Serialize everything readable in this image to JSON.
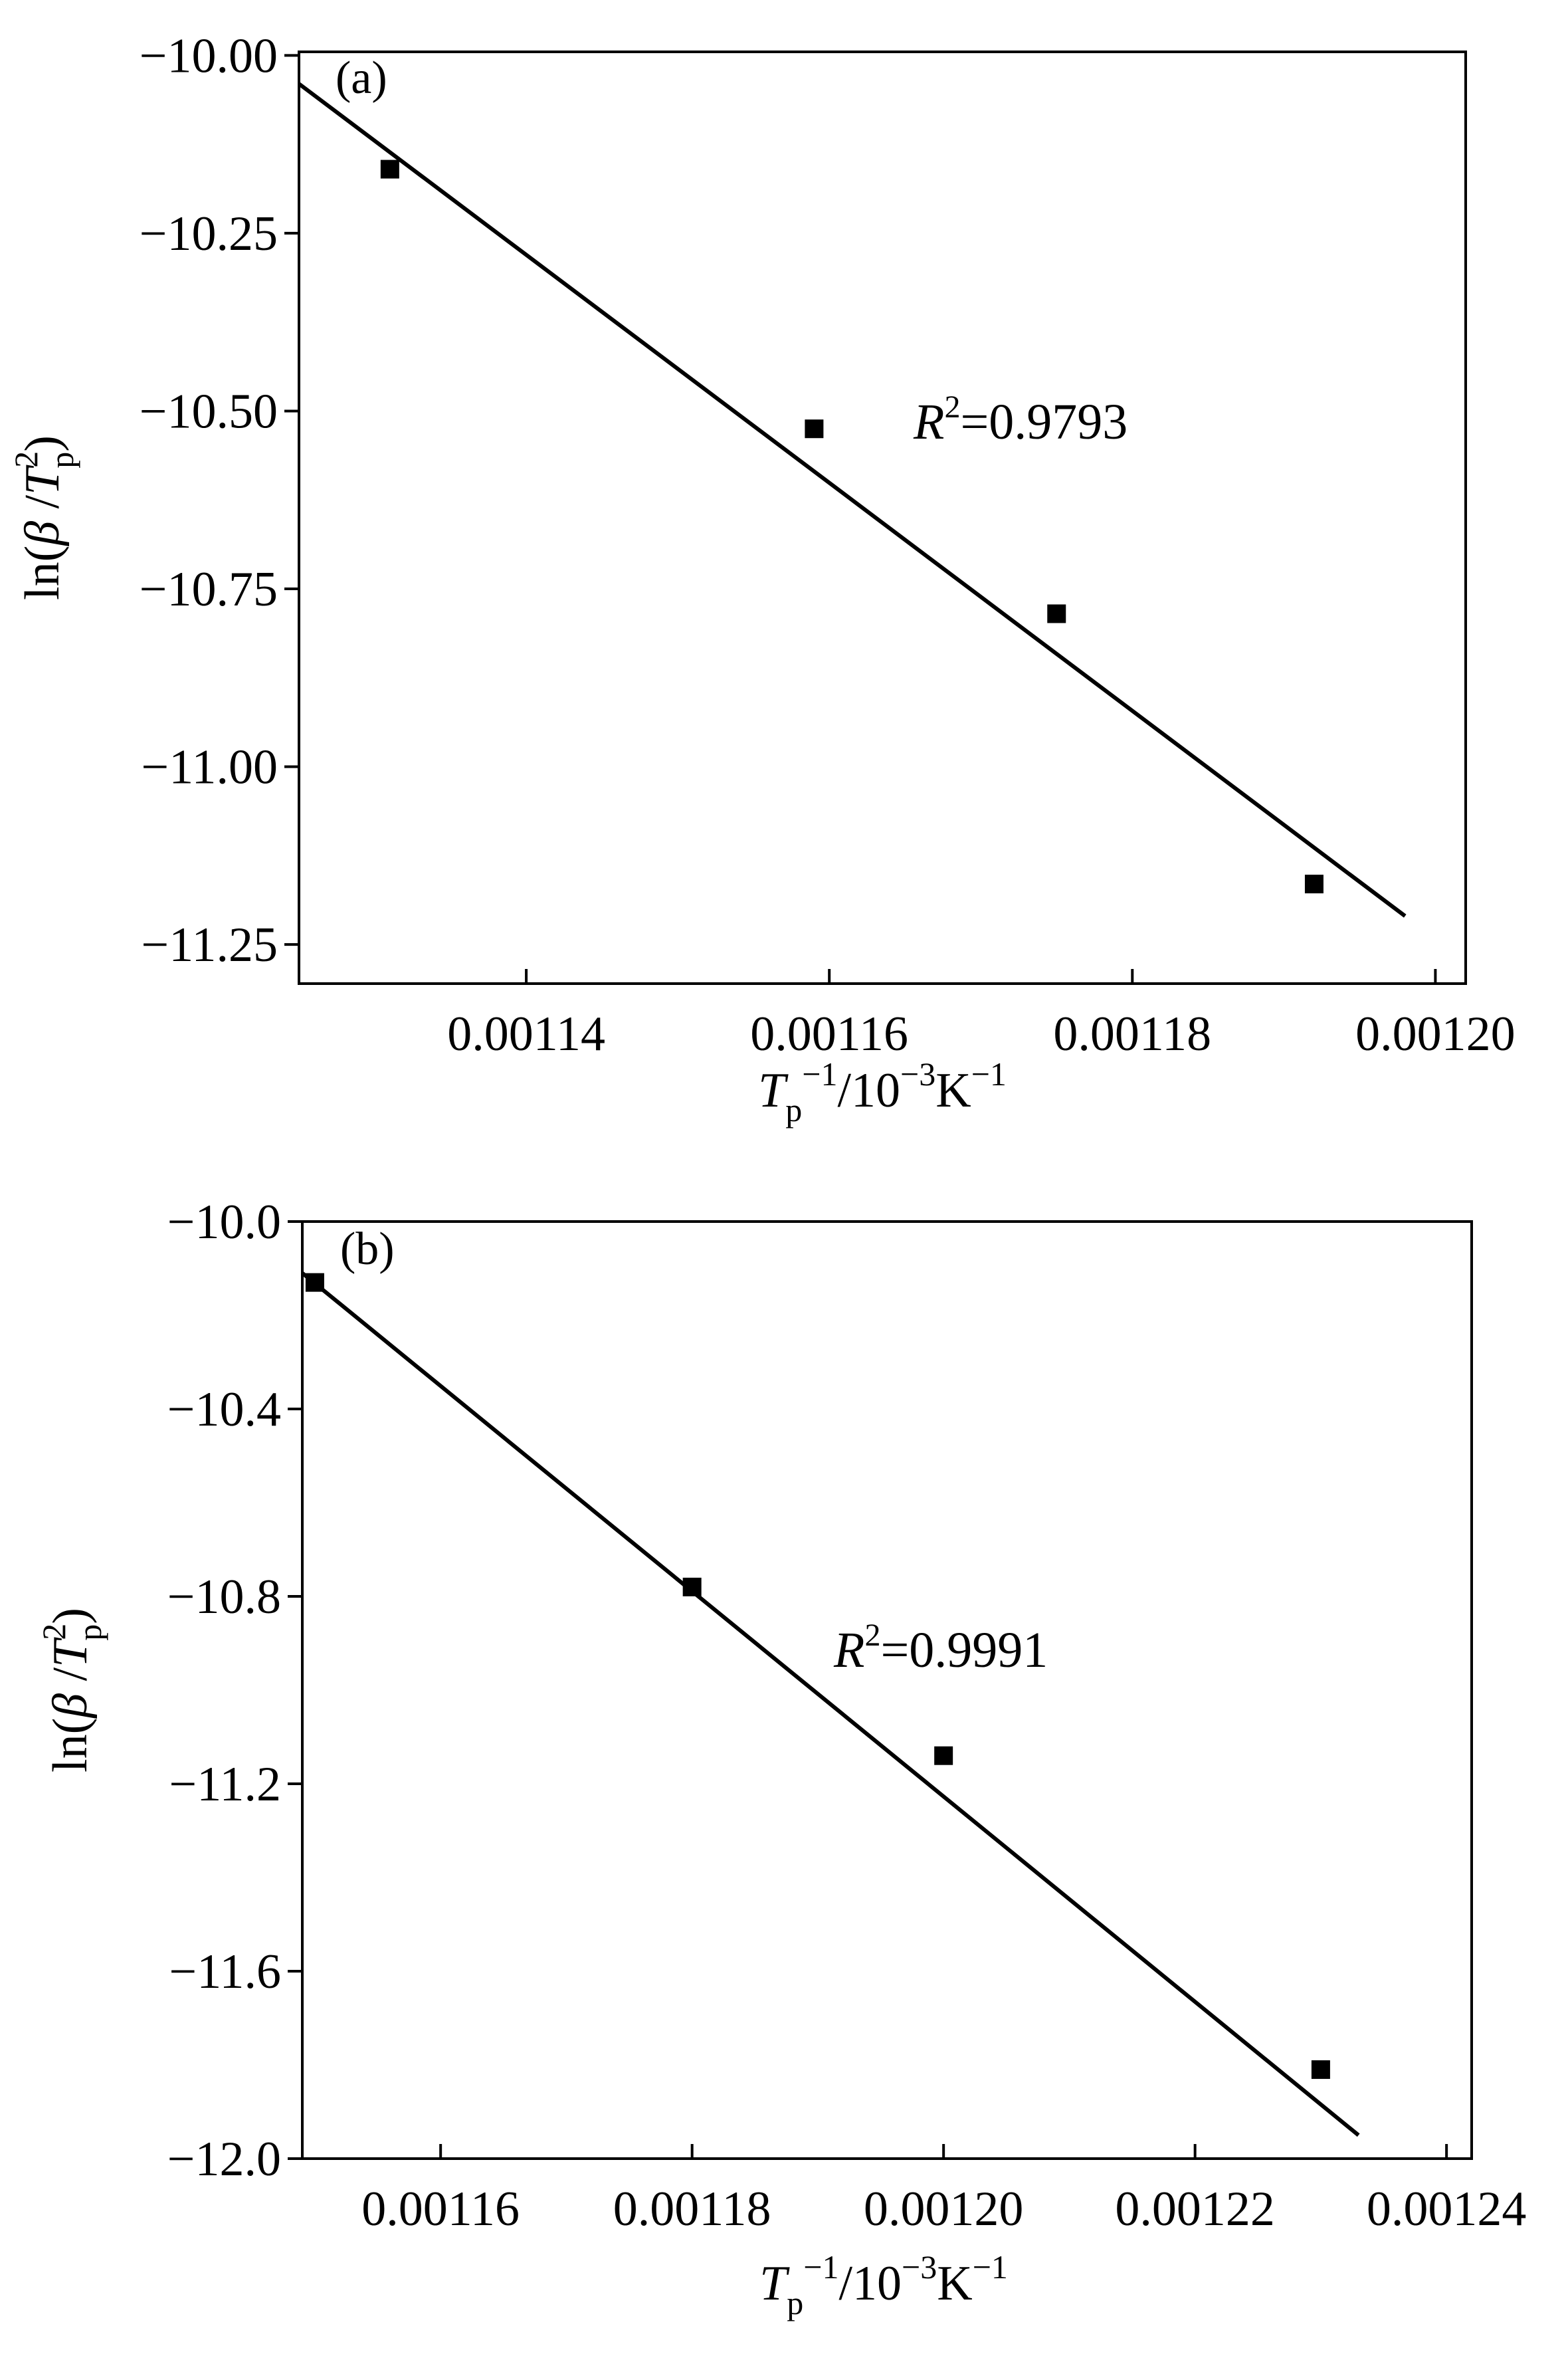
{
  "chart_data": [
    {
      "type": "scatter",
      "panel_label": "(a)",
      "xlabel": {
        "main": "T",
        "sub": "p",
        "sup1": "−1",
        "rest": "/10",
        "sup2": "−3",
        "unit": "K",
        "sup3": "−1"
      },
      "ylabel": {
        "pre": "ln(",
        "beta": "β",
        "slash": " /",
        "T": "T",
        "sup": "2",
        "sub": "p",
        "post": ")"
      },
      "xlim": [
        0.001125,
        0.001202
      ],
      "ylim": [
        -11.305,
        -9.995
      ],
      "xticks": [
        0.00114,
        0.00116,
        0.00118,
        0.0012
      ],
      "xtick_labels": [
        "0.00114",
        "0.00116",
        "0.00118",
        "0.00120"
      ],
      "yticks": [
        -10.0,
        -10.25,
        -10.5,
        -10.75,
        -11.0,
        -11.25
      ],
      "ytick_labels": [
        "−10.00",
        "−10.25",
        "−10.50",
        "−10.75",
        "−11.00",
        "−11.25"
      ],
      "points": {
        "x": [
          0.001131,
          0.001159,
          0.001175,
          0.001192
        ],
        "y": [
          -10.16,
          -10.525,
          -10.785,
          -11.165
        ]
      },
      "fit_line": {
        "x": [
          0.001125,
          0.001198
        ],
        "y": [
          -10.04,
          -11.21
        ]
      },
      "annotation": {
        "R": "R",
        "sup": "2",
        "rest": "=0.9793"
      },
      "grid": false,
      "legend": "none"
    },
    {
      "type": "scatter",
      "panel_label": "(b)",
      "xlabel": {
        "main": "T",
        "sub": "p",
        "sup1": "−1",
        "rest": "/10",
        "sup2": "−3",
        "unit": "K",
        "sup3": "−1"
      },
      "ylabel": {
        "pre": "ln(",
        "beta": "β",
        "slash": " /",
        "T": "T",
        "sup": "2",
        "sub": "p",
        "post": ")"
      },
      "xlim": [
        0.001149,
        0.001242
      ],
      "ylim": [
        -12.0,
        -10.0
      ],
      "xticks": [
        0.00116,
        0.00118,
        0.0012,
        0.00122,
        0.00124
      ],
      "xtick_labels": [
        "0.00116",
        "0.00118",
        "0.00120",
        "0.00122",
        "0.00124"
      ],
      "yticks": [
        -10.0,
        -10.4,
        -10.8,
        -11.2,
        -11.6,
        -12.0
      ],
      "ytick_labels": [
        "−10.0",
        "−10.4",
        "−10.8",
        "−11.2",
        "−11.6",
        "−12.0"
      ],
      "points": {
        "x": [
          0.00115,
          0.00118,
          0.0012,
          0.00123
        ],
        "y": [
          -10.13,
          -10.78,
          -11.14,
          -11.81
        ]
      },
      "fit_line": {
        "x": [
          0.001149,
          0.001233
        ],
        "y": [
          -10.11,
          -11.95
        ]
      },
      "annotation": {
        "R": "R",
        "sup": "2",
        "rest": "=0.9991"
      },
      "grid": false,
      "legend": "none"
    }
  ]
}
